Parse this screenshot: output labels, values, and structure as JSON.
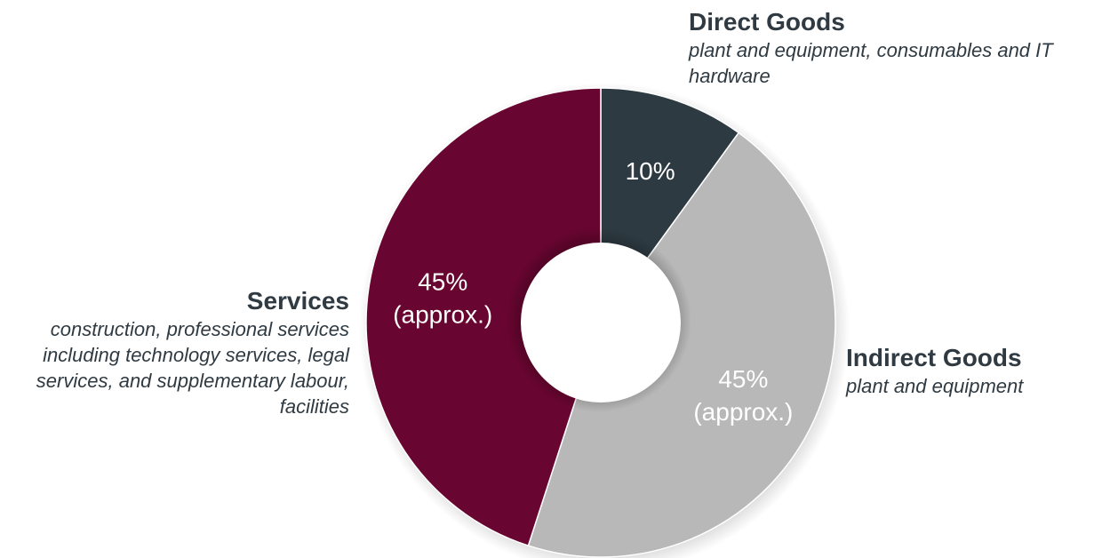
{
  "chart_data": {
    "type": "pie",
    "donut": true,
    "slices": [
      {
        "name": "Direct Goods",
        "description": "plant and equipment, consumables and IT hardware",
        "value": 10,
        "label_lines": [
          "10%"
        ],
        "color": "#2e3a42",
        "label_color": "#ffffff"
      },
      {
        "name": "Indirect Goods",
        "description": "plant and equipment",
        "value": 45,
        "label_lines": [
          "45%",
          "(approx.)"
        ],
        "color": "#b8b8b8",
        "label_color": "#ffffff"
      },
      {
        "name": "Services",
        "description": "construction, professional services including technology services, legal services, and supplementary labour, facilities",
        "value": 45,
        "label_lines": [
          "45%",
          "(approx.)"
        ],
        "color": "#680530",
        "label_color": "#ffffff"
      }
    ]
  }
}
